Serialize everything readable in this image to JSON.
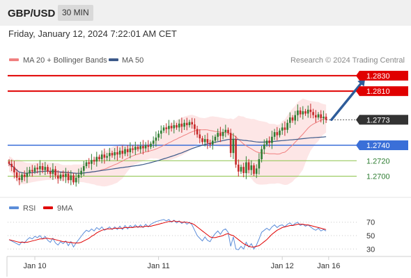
{
  "header": {
    "symbol": "GBP/USD",
    "timeframe": "30 MIN",
    "datetime": "Friday, January 12, 2024 7:22:01 AM CET"
  },
  "colors": {
    "resistance": "#e00000",
    "support": "#3a6fd8",
    "minor": "#8bc34a",
    "ma20": "#f08080",
    "ma50": "#3d5a8a",
    "band_fill": "#fde2e2",
    "candle_up": "#2e7d32",
    "candle_down": "#c62828",
    "arrow": "#2e5c9a",
    "current_tag": "#333333",
    "rsi": "#5b8dd9",
    "rsi_ma": "#e00000"
  },
  "chart_data": [
    {
      "type": "candlestick",
      "legend": {
        "ma20_label": "MA 20 + Bollinger Bands",
        "ma50_label": "MA 50"
      },
      "credit": "Research © 2024 Trading Central",
      "ylim": [
        1.2678,
        1.2838
      ],
      "levels": [
        {
          "value": 1.283,
          "label": "1.2830",
          "kind": "resistance"
        },
        {
          "value": 1.281,
          "label": "1.2810",
          "kind": "resistance"
        },
        {
          "value": 1.2773,
          "label": "1.2773",
          "kind": "current"
        },
        {
          "value": 1.274,
          "label": "1.2740",
          "kind": "support"
        },
        {
          "value": 1.272,
          "label": "1.2720",
          "kind": "minor"
        },
        {
          "value": 1.27,
          "label": "1.2700",
          "kind": "minor"
        }
      ],
      "x_ticks": [
        {
          "label": "Jan 10",
          "index": 10
        },
        {
          "label": "Jan 11",
          "index": 58
        },
        {
          "label": "Jan 12",
          "index": 106
        },
        {
          "label": "Jan 16",
          "index": 124
        }
      ],
      "close": [
        1.2716,
        1.2712,
        1.2705,
        1.2698,
        1.2695,
        1.2702,
        1.2699,
        1.2704,
        1.2708,
        1.2706,
        1.2711,
        1.2709,
        1.2713,
        1.2708,
        1.2712,
        1.2706,
        1.2703,
        1.2709,
        1.2701,
        1.2697,
        1.2702,
        1.2699,
        1.2703,
        1.2695,
        1.2701,
        1.2692,
        1.2698,
        1.2702,
        1.2707,
        1.2713,
        1.2718,
        1.2716,
        1.2721,
        1.2719,
        1.2725,
        1.2722,
        1.2728,
        1.2724,
        1.2726,
        1.273,
        1.2727,
        1.2731,
        1.2728,
        1.2733,
        1.2729,
        1.2735,
        1.2731,
        1.2736,
        1.2734,
        1.2738,
        1.2735,
        1.2739,
        1.2736,
        1.274,
        1.2738,
        1.2742,
        1.2746,
        1.275,
        1.2755,
        1.2759,
        1.2763,
        1.2761,
        1.2765,
        1.2762,
        1.2766,
        1.2763,
        1.2768,
        1.2764,
        1.2769,
        1.2766,
        1.277,
        1.2767,
        1.2761,
        1.2754,
        1.2749,
        1.2744,
        1.2748,
        1.2743,
        1.2741,
        1.2746,
        1.2751,
        1.2756,
        1.2752,
        1.2757,
        1.276,
        1.2756,
        1.273,
        1.2748,
        1.2715,
        1.2706,
        1.2712,
        1.2704,
        1.2718,
        1.2708,
        1.2714,
        1.2703,
        1.271,
        1.2722,
        1.2735,
        1.2741,
        1.2746,
        1.2743,
        1.2751,
        1.2757,
        1.2753,
        1.2759,
        1.2763,
        1.276,
        1.2769,
        1.2776,
        1.2772,
        1.2779,
        1.2785,
        1.278,
        1.2784,
        1.2781,
        1.2786,
        1.2783,
        1.2779,
        1.2776,
        1.278,
        1.2775,
        1.2777,
        1.2773
      ],
      "forecast_arrow": {
        "from_index": 124,
        "from_value": 1.2773,
        "to_index": 136,
        "to_value": 1.283
      }
    },
    {
      "type": "line",
      "legend": {
        "rsi_label": "RSI",
        "ma_label": "9MA"
      },
      "ylim": [
        22,
        78
      ],
      "y_ticks": [
        70,
        50,
        30
      ],
      "rsi": [
        44,
        42,
        40,
        38,
        36,
        41,
        39,
        44,
        47,
        45,
        49,
        47,
        50,
        45,
        49,
        43,
        40,
        46,
        39,
        36,
        41,
        38,
        42,
        35,
        41,
        33,
        39,
        44,
        49,
        54,
        58,
        56,
        60,
        57,
        62,
        59,
        63,
        58,
        60,
        63,
        59,
        63,
        59,
        64,
        59,
        65,
        60,
        65,
        62,
        66,
        62,
        66,
        62,
        67,
        63,
        67,
        69,
        71,
        72,
        73,
        74,
        72,
        74,
        70,
        73,
        69,
        72,
        68,
        71,
        67,
        70,
        66,
        58,
        50,
        46,
        42,
        48,
        43,
        41,
        48,
        53,
        57,
        52,
        58,
        60,
        55,
        34,
        48,
        30,
        29,
        34,
        30,
        40,
        33,
        38,
        30,
        36,
        45,
        55,
        58,
        61,
        58,
        63,
        66,
        62,
        65,
        66,
        63,
        67,
        69,
        65,
        68,
        70,
        65,
        67,
        64,
        66,
        63,
        60,
        58,
        61,
        57,
        59,
        57
      ],
      "rsi_ma": [
        44,
        43,
        42,
        41,
        40,
        40,
        40,
        40,
        41,
        42,
        43,
        44,
        45,
        45,
        46,
        46,
        45,
        45,
        44,
        43,
        42,
        41,
        41,
        40,
        40,
        39,
        39,
        39,
        40,
        42,
        44,
        46,
        49,
        51,
        54,
        56,
        58,
        59,
        60,
        60,
        60,
        61,
        61,
        61,
        61,
        62,
        62,
        62,
        62,
        63,
        63,
        63,
        63,
        64,
        64,
        64,
        65,
        66,
        67,
        68,
        69,
        70,
        71,
        71,
        72,
        71,
        71,
        70,
        70,
        70,
        69,
        68,
        66,
        63,
        60,
        57,
        54,
        51,
        48,
        47,
        47,
        48,
        49,
        50,
        52,
        53,
        51,
        50,
        47,
        44,
        41,
        38,
        36,
        34,
        33,
        33,
        34,
        35,
        38,
        41,
        44,
        48,
        52,
        55,
        58,
        60,
        62,
        63,
        64,
        65,
        65,
        66,
        67,
        67,
        67,
        66,
        66,
        65,
        64,
        63,
        62,
        61,
        60,
        59
      ]
    }
  ]
}
